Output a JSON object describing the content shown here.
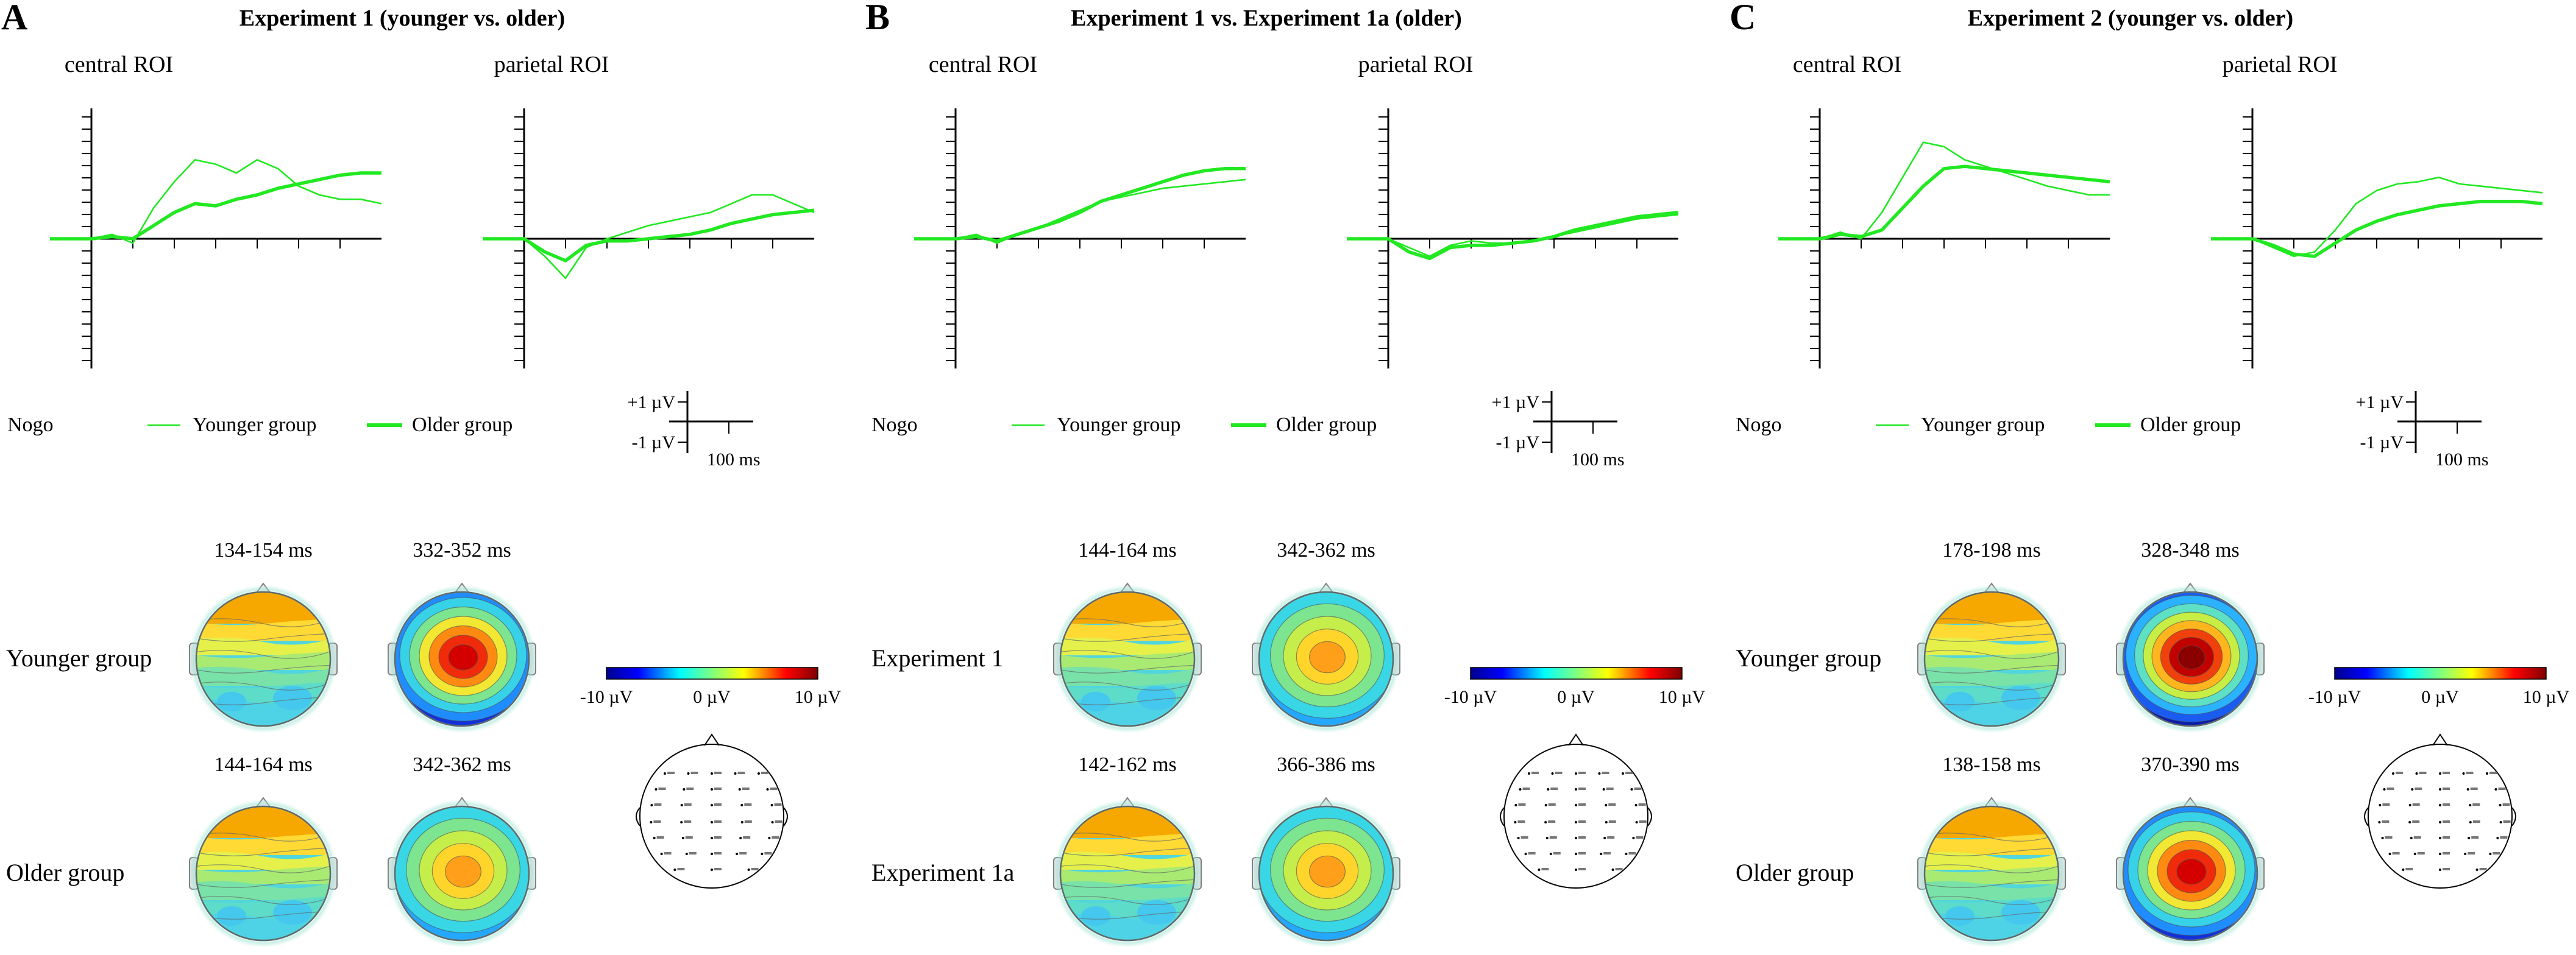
{
  "panels": [
    {
      "letter": "A",
      "title": "Experiment 1 (younger vs. older)",
      "roi_labels": [
        "central ROI",
        "parietal ROI"
      ],
      "legend": {
        "condition": "Nogo",
        "thin": "Younger group",
        "thick": "Older group"
      },
      "scale": {
        "plus": "+1 µV",
        "minus": "-1 µV",
        "time": "100 ms"
      },
      "rows": [
        {
          "label": "Younger group",
          "windows": [
            "134-154 ms",
            "332-352 ms"
          ],
          "maps": [
            "frontal-pos-mild",
            "central-pos-strong"
          ]
        },
        {
          "label": "Older group",
          "windows": [
            "144-164 ms",
            "342-362 ms"
          ],
          "maps": [
            "frontal-pos-mild",
            "central-pos-medium"
          ]
        }
      ],
      "colorbar": {
        "min": "-10 µV",
        "mid": "0 µV",
        "max": "10 µV"
      }
    },
    {
      "letter": "B",
      "title": "Experiment 1 vs. Experiment 1a (older)",
      "roi_labels": [
        "central ROI",
        "parietal ROI"
      ],
      "legend": {
        "condition": "Nogo",
        "thin": "Younger group",
        "thick": "Older group"
      },
      "scale": {
        "plus": "+1 µV",
        "minus": "-1 µV",
        "time": "100 ms"
      },
      "rows": [
        {
          "label": "Experiment 1",
          "windows": [
            "144-164 ms",
            "342-362 ms"
          ],
          "maps": [
            "frontal-pos-mild",
            "central-pos-medium"
          ]
        },
        {
          "label": "Experiment 1a",
          "windows": [
            "142-162 ms",
            "366-386 ms"
          ],
          "maps": [
            "frontal-pos-mild",
            "central-pos-medium"
          ]
        }
      ],
      "colorbar": {
        "min": "-10 µV",
        "mid": "0 µV",
        "max": "10 µV"
      }
    },
    {
      "letter": "C",
      "title": "Experiment 2 (younger vs. older)",
      "roi_labels": [
        "central ROI",
        "parietal ROI"
      ],
      "legend": {
        "condition": "Nogo",
        "thin": "Younger group",
        "thick": "Older group"
      },
      "scale": {
        "plus": "+1 µV",
        "minus": "-1 µV",
        "time": "100 ms"
      },
      "rows": [
        {
          "label": "Younger group",
          "windows": [
            "178-198 ms",
            "328-348 ms"
          ],
          "maps": [
            "frontal-pos-mild",
            "central-pos-strongest"
          ]
        },
        {
          "label": "Older group",
          "windows": [
            "138-158 ms",
            "370-390 ms"
          ],
          "maps": [
            "frontal-pos-mild",
            "central-pos-strong"
          ]
        }
      ],
      "colorbar": {
        "min": "-10 µV",
        "mid": "0 µV",
        "max": "10 µV"
      }
    }
  ],
  "chart_data": [
    {
      "type": "line",
      "panel": "A",
      "title": "central ROI",
      "xlabel": "ms",
      "ylabel": "µV",
      "xlim": [
        -100,
        700
      ],
      "ylim": [
        -3,
        3
      ],
      "x": [
        -100,
        0,
        50,
        100,
        150,
        200,
        250,
        300,
        350,
        400,
        450,
        500,
        550,
        600,
        650,
        700
      ],
      "series": [
        {
          "name": "Younger group",
          "values": [
            0,
            0,
            0.1,
            -0.1,
            0.7,
            1.3,
            1.8,
            1.7,
            1.5,
            1.8,
            1.6,
            1.2,
            1.0,
            0.9,
            0.9,
            0.8
          ]
        },
        {
          "name": "Older group",
          "values": [
            0,
            0,
            0.05,
            0.0,
            0.3,
            0.6,
            0.8,
            0.75,
            0.9,
            1.0,
            1.15,
            1.25,
            1.35,
            1.45,
            1.5,
            1.5
          ]
        }
      ]
    },
    {
      "type": "line",
      "panel": "A",
      "title": "parietal ROI",
      "xlabel": "ms",
      "ylabel": "µV",
      "xlim": [
        -100,
        700
      ],
      "ylim": [
        -3,
        3
      ],
      "x": [
        -100,
        0,
        50,
        100,
        150,
        200,
        250,
        300,
        350,
        400,
        450,
        500,
        550,
        600,
        650,
        700
      ],
      "series": [
        {
          "name": "Younger group",
          "values": [
            0,
            0,
            -0.4,
            -0.9,
            -0.2,
            0.0,
            0.15,
            0.3,
            0.4,
            0.5,
            0.6,
            0.8,
            1.0,
            1.0,
            0.8,
            0.6
          ]
        },
        {
          "name": "Older group",
          "values": [
            0,
            0,
            -0.3,
            -0.5,
            -0.15,
            -0.05,
            -0.05,
            0.0,
            0.05,
            0.1,
            0.2,
            0.35,
            0.45,
            0.55,
            0.6,
            0.65
          ]
        }
      ]
    },
    {
      "type": "line",
      "panel": "B",
      "title": "central ROI",
      "xlabel": "ms",
      "ylabel": "µV",
      "xlim": [
        -100,
        700
      ],
      "ylim": [
        -3,
        3
      ],
      "x": [
        -100,
        0,
        50,
        100,
        150,
        200,
        250,
        300,
        350,
        400,
        450,
        500,
        550,
        600,
        650,
        700
      ],
      "series": [
        {
          "name": "Younger group",
          "values": [
            0,
            0,
            0.1,
            -0.1,
            0.1,
            0.25,
            0.45,
            0.65,
            0.85,
            0.95,
            1.05,
            1.15,
            1.2,
            1.25,
            1.3,
            1.35
          ]
        },
        {
          "name": "Older group",
          "values": [
            0,
            0,
            0.05,
            -0.05,
            0.1,
            0.25,
            0.4,
            0.6,
            0.85,
            1.0,
            1.15,
            1.3,
            1.45,
            1.55,
            1.6,
            1.6
          ]
        }
      ]
    },
    {
      "type": "line",
      "panel": "B",
      "title": "parietal ROI",
      "xlabel": "ms",
      "ylabel": "µV",
      "xlim": [
        -100,
        700
      ],
      "ylim": [
        -3,
        3
      ],
      "x": [
        -100,
        0,
        50,
        100,
        150,
        200,
        250,
        300,
        350,
        400,
        450,
        500,
        550,
        600,
        650,
        700
      ],
      "series": [
        {
          "name": "Younger group",
          "values": [
            0,
            0,
            -0.2,
            -0.4,
            -0.15,
            -0.05,
            -0.1,
            -0.1,
            -0.05,
            0.05,
            0.15,
            0.25,
            0.35,
            0.45,
            0.5,
            0.55
          ]
        },
        {
          "name": "Older group",
          "values": [
            0,
            0,
            -0.3,
            -0.45,
            -0.2,
            -0.15,
            -0.15,
            -0.1,
            -0.05,
            0.05,
            0.2,
            0.3,
            0.4,
            0.5,
            0.55,
            0.6
          ]
        }
      ]
    },
    {
      "type": "line",
      "panel": "C",
      "title": "central ROI",
      "xlabel": "ms",
      "ylabel": "µV",
      "xlim": [
        -100,
        700
      ],
      "ylim": [
        -3,
        3
      ],
      "x": [
        -100,
        0,
        50,
        100,
        150,
        200,
        250,
        300,
        350,
        400,
        450,
        500,
        550,
        600,
        650,
        700
      ],
      "series": [
        {
          "name": "Younger group",
          "values": [
            0,
            0,
            0.15,
            0.0,
            0.6,
            1.4,
            2.2,
            2.1,
            1.8,
            1.65,
            1.5,
            1.35,
            1.2,
            1.1,
            1.0,
            1.0
          ]
        },
        {
          "name": "Older group",
          "values": [
            0,
            0,
            0.1,
            0.05,
            0.2,
            0.7,
            1.2,
            1.6,
            1.65,
            1.6,
            1.55,
            1.5,
            1.45,
            1.4,
            1.35,
            1.3
          ]
        }
      ]
    },
    {
      "type": "line",
      "panel": "C",
      "title": "parietal ROI",
      "xlabel": "ms",
      "ylabel": "µV",
      "xlim": [
        -100,
        700
      ],
      "ylim": [
        -3,
        3
      ],
      "x": [
        -100,
        0,
        50,
        100,
        150,
        200,
        250,
        300,
        350,
        400,
        450,
        500,
        550,
        600,
        650,
        700
      ],
      "series": [
        {
          "name": "Younger group",
          "values": [
            0,
            0,
            -0.2,
            -0.4,
            -0.3,
            0.2,
            0.8,
            1.1,
            1.25,
            1.3,
            1.4,
            1.25,
            1.2,
            1.15,
            1.1,
            1.05
          ]
        },
        {
          "name": "Older group",
          "values": [
            0,
            0,
            -0.15,
            -0.35,
            -0.4,
            -0.1,
            0.2,
            0.4,
            0.55,
            0.65,
            0.75,
            0.8,
            0.85,
            0.85,
            0.85,
            0.8
          ]
        }
      ]
    }
  ],
  "colors": {
    "wave": "#22e822",
    "text": "#000000"
  }
}
